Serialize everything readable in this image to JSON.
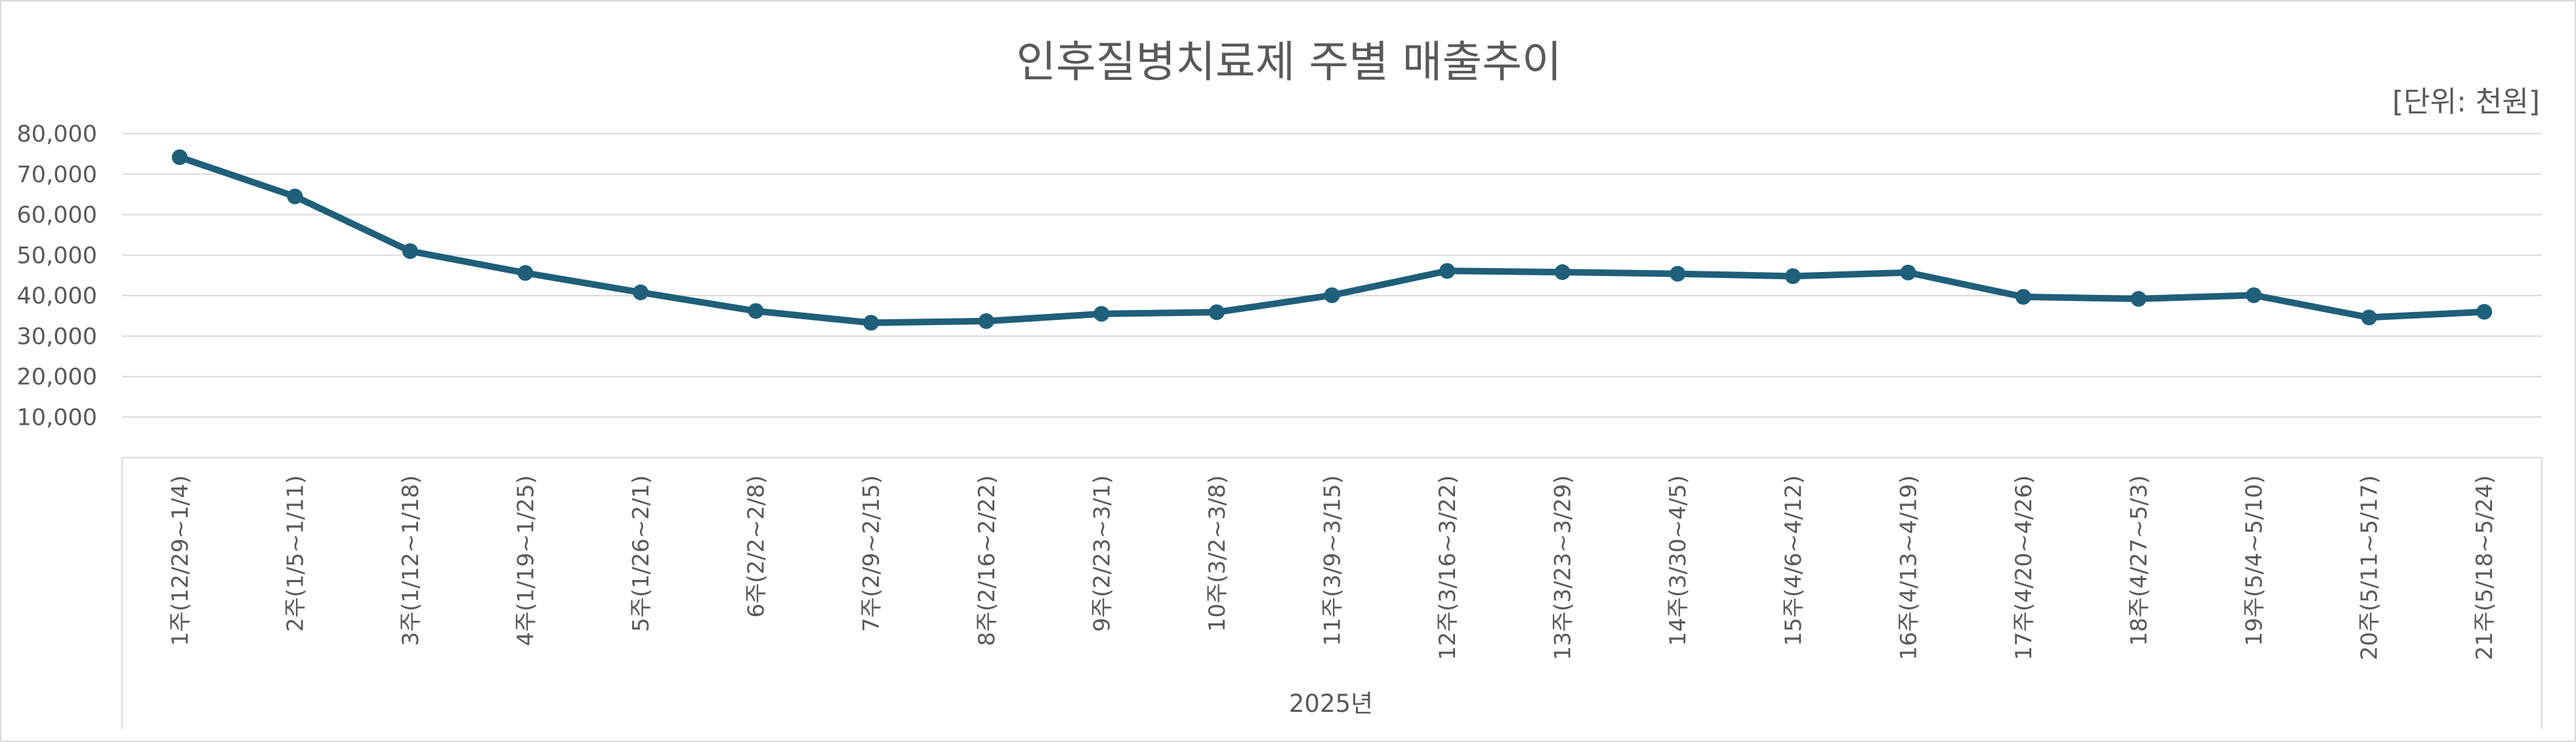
{
  "chart_data": {
    "type": "line",
    "title": "인후질병치료제 주별 매출추이",
    "unit_note": "[단위: 천원]",
    "xlabel": "2025년",
    "ylabel": "",
    "ylim": [
      0,
      80000
    ],
    "yticks": [
      10000,
      20000,
      30000,
      40000,
      50000,
      60000,
      70000,
      80000
    ],
    "ytick_labels": [
      "10,000",
      "20,000",
      "30,000",
      "40,000",
      "50,000",
      "60,000",
      "70,000",
      "80,000"
    ],
    "grid": true,
    "legend": "none",
    "categories": [
      "1주(12/29~1/4)",
      "2주(1/5~1/11)",
      "3주(1/12~1/18)",
      "4주(1/19~1/25)",
      "5주(1/26~2/1)",
      "6주(2/2~2/8)",
      "7주(2/9~2/15)",
      "8주(2/16~2/22)",
      "9주(2/23~3/1)",
      "10주(3/2~3/8)",
      "11주(3/9~3/15)",
      "12주(3/16~3/22)",
      "13주(3/23~3/29)",
      "14주(3/30~4/5)",
      "15주(4/6~4/12)",
      "16주(4/13~4/19)",
      "17주(4/20~4/26)",
      "18주(4/27~5/3)",
      "19주(5/4~5/10)",
      "20주(5/11~5/17)",
      "21주(5/18~5/24)"
    ],
    "series": [
      {
        "values": [
          74200,
          64500,
          51000,
          45600,
          40800,
          36200,
          33300,
          33700,
          35500,
          35900,
          40100,
          46100,
          45800,
          45400,
          44800,
          45700,
          39700,
          39200,
          40100,
          34600,
          36000
        ],
        "color": "#1f5f7a"
      }
    ]
  }
}
